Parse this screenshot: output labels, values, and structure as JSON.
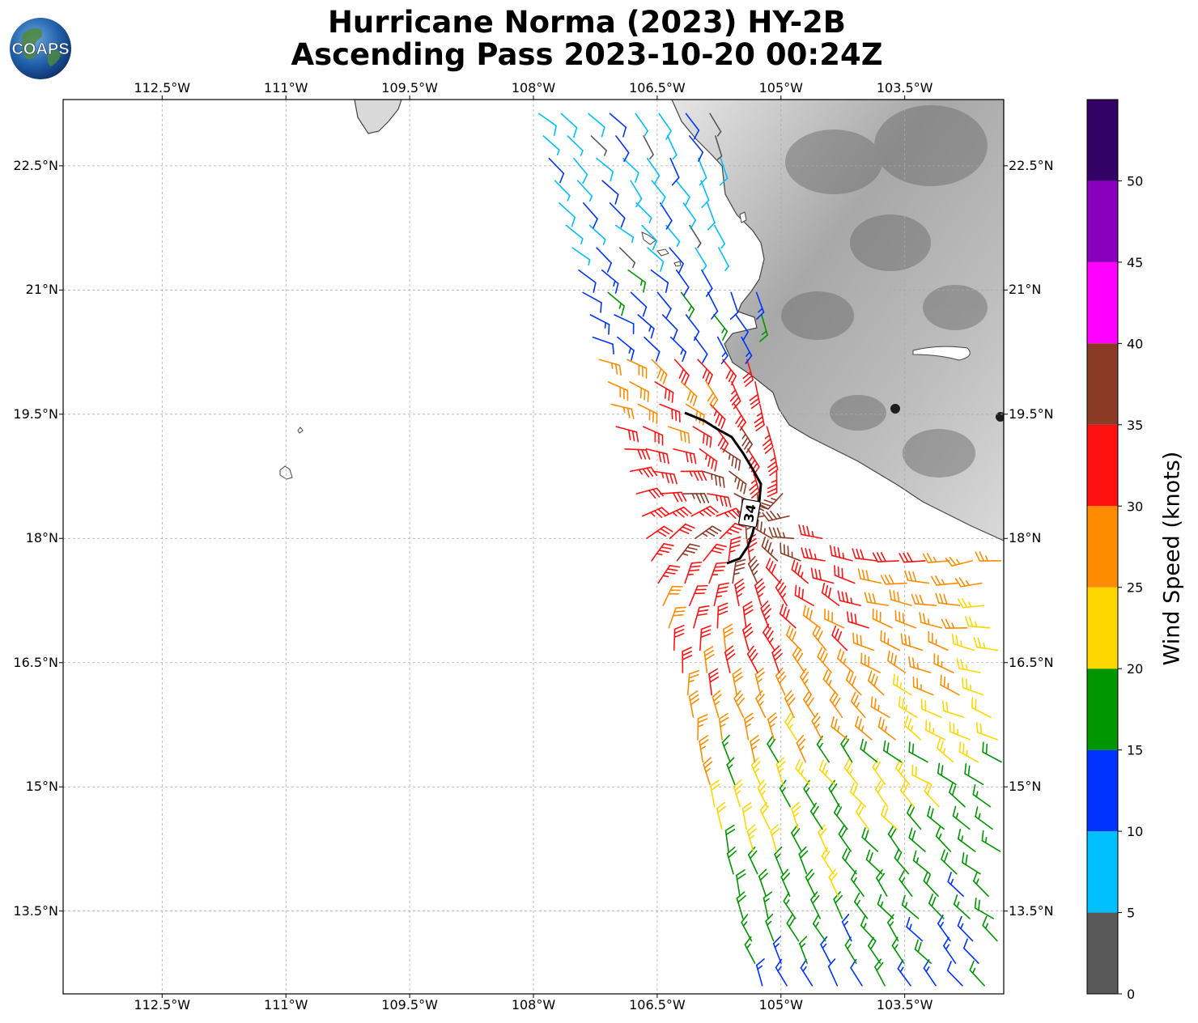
{
  "title": {
    "line1": "Hurricane Norma (2023) HY-2B",
    "line2": "Ascending Pass 2023-10-20 00:24Z"
  },
  "logo_text": "COAPS",
  "map": {
    "lon_range": [
      -113.7,
      -102.3
    ],
    "lat_range": [
      12.5,
      23.3
    ],
    "lon_ticks": [
      "112.5°W",
      "111°W",
      "109.5°W",
      "108°W",
      "106.5°W",
      "105°W",
      "103.5°W"
    ],
    "lon_values": [
      -112.5,
      -111.0,
      -109.5,
      -108.0,
      -106.5,
      -105.0,
      -103.5
    ],
    "lat_ticks": [
      "22.5°N",
      "21°N",
      "19.5°N",
      "18°N",
      "16.5°N",
      "15°N",
      "13.5°N"
    ],
    "lat_values": [
      22.5,
      21.0,
      19.5,
      18.0,
      16.5,
      15.0,
      13.5
    ],
    "grid": true,
    "contour_label": "34",
    "contour_kt": 34
  },
  "colorbar": {
    "title": "Wind Speed (knots)",
    "ticks": [
      "0",
      "5",
      "10",
      "15",
      "20",
      "25",
      "30",
      "35",
      "40",
      "45",
      "50"
    ],
    "bins": [
      {
        "min": 0,
        "max": 5,
        "color": "#595959"
      },
      {
        "min": 5,
        "max": 10,
        "color": "#00bfff"
      },
      {
        "min": 10,
        "max": 15,
        "color": "#0033ff"
      },
      {
        "min": 15,
        "max": 20,
        "color": "#009600"
      },
      {
        "min": 20,
        "max": 25,
        "color": "#ffd700"
      },
      {
        "min": 25,
        "max": 30,
        "color": "#ff8c00"
      },
      {
        "min": 30,
        "max": 35,
        "color": "#ff1111"
      },
      {
        "min": 35,
        "max": 40,
        "color": "#8b3a26"
      },
      {
        "min": 40,
        "max": 45,
        "color": "#ff00ff"
      },
      {
        "min": 45,
        "max": 50,
        "color": "#8800bb"
      },
      {
        "min": 50,
        "max": 55,
        "color": "#330066"
      }
    ]
  }
}
